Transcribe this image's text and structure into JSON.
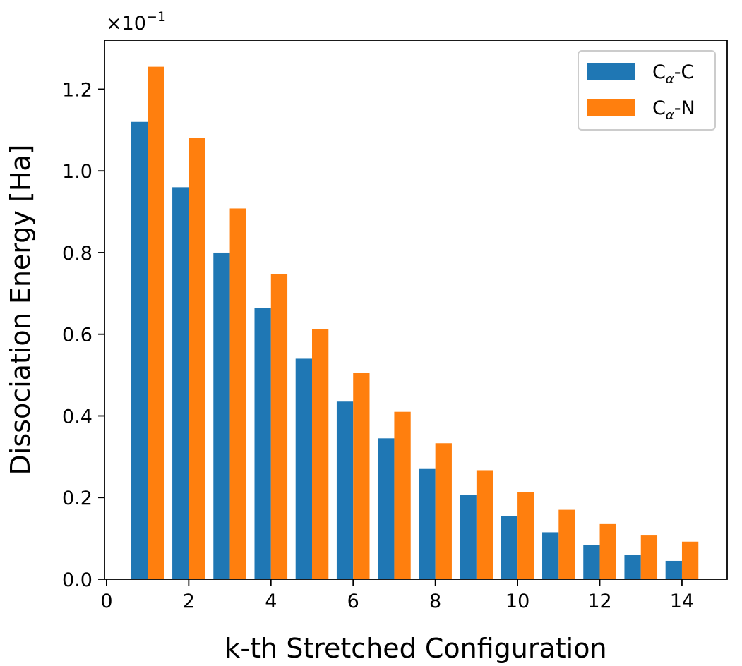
{
  "chart_data": {
    "type": "bar",
    "xlabel": "k-th Stretched Configuration",
    "ylabel": "Dissociation Energy [Ha]",
    "y_multiplier": {
      "base": "×10",
      "exponent": "−1"
    },
    "x": [
      1,
      2,
      3,
      4,
      5,
      6,
      7,
      8,
      9,
      10,
      11,
      12,
      13,
      14
    ],
    "xlim": [
      -0.05,
      15.1
    ],
    "ylim": [
      0,
      1.32
    ],
    "xticks": [
      0,
      2,
      4,
      6,
      8,
      10,
      12,
      14
    ],
    "yticks": [
      0.0,
      0.2,
      0.4,
      0.6,
      0.8,
      1.0,
      1.2
    ],
    "ytick_labels": [
      "0.0",
      "0.2",
      "0.4",
      "0.6",
      "0.8",
      "1.0",
      "1.2"
    ],
    "series": [
      {
        "name": "C",
        "subscript": "α",
        "suffix": "-C",
        "color": "#1f77b4",
        "values": [
          1.12,
          0.96,
          0.8,
          0.665,
          0.54,
          0.435,
          0.345,
          0.27,
          0.207,
          0.155,
          0.115,
          0.083,
          0.059,
          0.045
        ]
      },
      {
        "name": "C",
        "subscript": "α",
        "suffix": "-N",
        "color": "#ff7f0e",
        "values": [
          1.255,
          1.08,
          0.908,
          0.747,
          0.613,
          0.506,
          0.41,
          0.333,
          0.267,
          0.214,
          0.17,
          0.135,
          0.107,
          0.092
        ]
      }
    ],
    "legend_position": "top-right",
    "grid": false
  }
}
